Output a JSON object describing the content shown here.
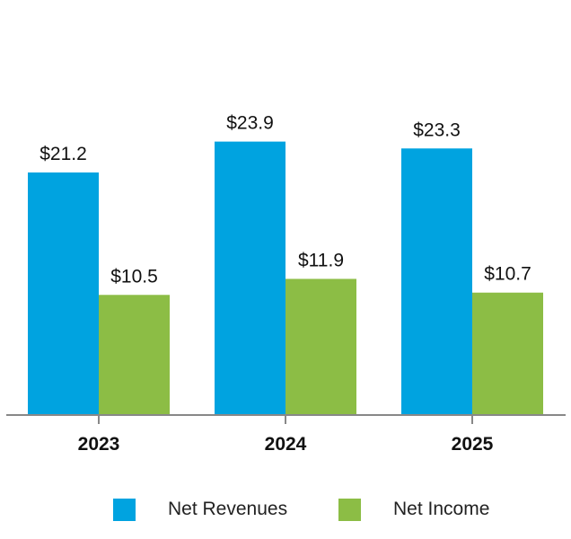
{
  "chart_data": {
    "type": "bar",
    "categories": [
      "2023",
      "2024",
      "2025"
    ],
    "series": [
      {
        "name": "Net Revenues",
        "values": [
          21.2,
          23.9,
          23.3
        ],
        "labels": [
          "$21.2",
          "$23.9",
          "$23.3"
        ],
        "color": "#00A3E0"
      },
      {
        "name": "Net Income",
        "values": [
          10.5,
          11.9,
          10.7
        ],
        "labels": [
          "$10.5",
          "$11.9",
          "$10.7"
        ],
        "color": "#8CBD45"
      }
    ],
    "ylim": [
      0,
      30
    ],
    "grid": false,
    "legend_position": "bottom",
    "axis_color": "#888888"
  },
  "legend": {
    "items": [
      {
        "label": "Net Revenues",
        "color": "#00A3E0"
      },
      {
        "label": "Net Income",
        "color": "#8CBD45"
      }
    ]
  }
}
